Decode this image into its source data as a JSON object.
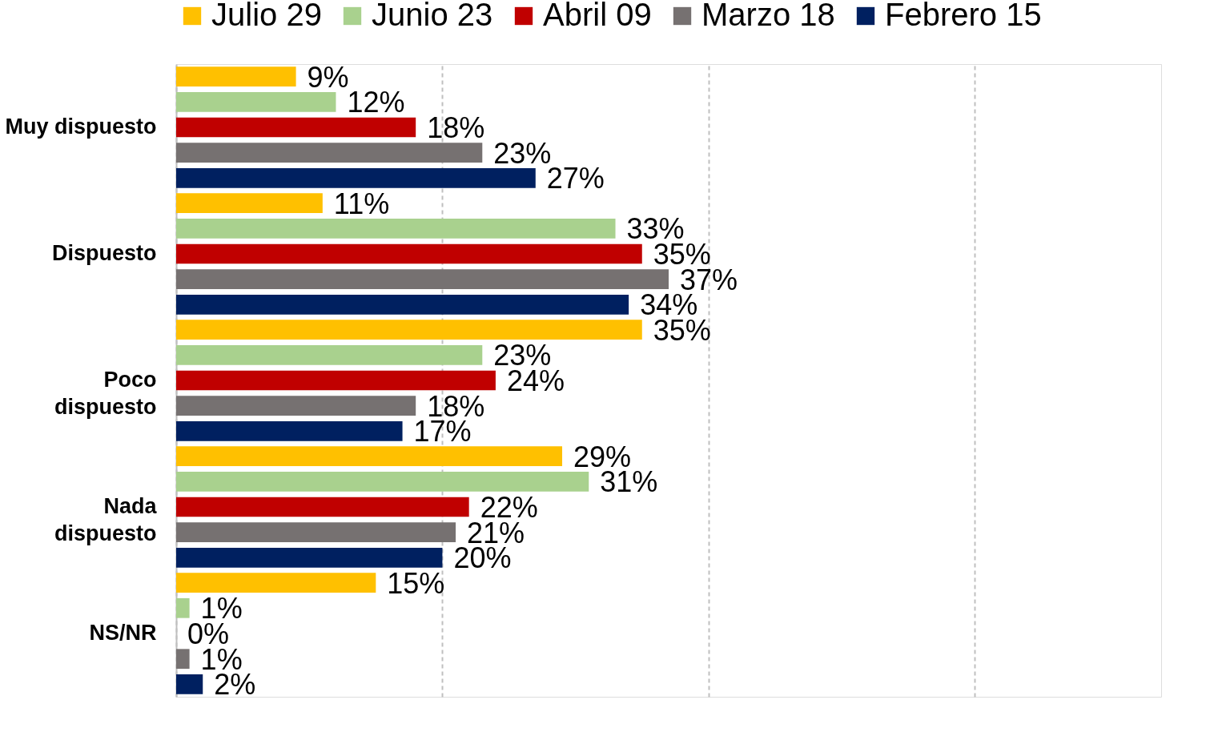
{
  "chart_data": {
    "type": "bar",
    "orientation": "horizontal",
    "categories": [
      "Muy dispuesto",
      "Dispuesto",
      "Poco\ndispuesto",
      "Nada\ndispuesto",
      "NS/NR"
    ],
    "series": [
      {
        "name": "Julio 29",
        "color": "#ffc000",
        "values": [
          9,
          11,
          35,
          29,
          15
        ],
        "value_labels": [
          "9%",
          "11%",
          "35%",
          "29%",
          "15%"
        ]
      },
      {
        "name": "Junio 23",
        "color": "#a9d18e",
        "values": [
          12,
          33,
          23,
          31,
          1
        ],
        "value_labels": [
          "12%",
          "33%",
          "23%",
          "31%",
          "1%"
        ]
      },
      {
        "name": "Abril 09",
        "color": "#c00000",
        "values": [
          18,
          35,
          24,
          22,
          0
        ],
        "value_labels": [
          "18%",
          "35%",
          "24%",
          "22%",
          "0%"
        ]
      },
      {
        "name": "Marzo 18",
        "color": "#767171",
        "values": [
          23,
          37,
          18,
          21,
          1
        ],
        "value_labels": [
          "23%",
          "37%",
          "18%",
          "21%",
          "1%"
        ]
      },
      {
        "name": "Febrero 15",
        "color": "#002060",
        "values": [
          27,
          34,
          17,
          20,
          2
        ],
        "value_labels": [
          "27%",
          "34%",
          "17%",
          "20%",
          "2%"
        ]
      }
    ],
    "xlim": [
      0,
      74
    ],
    "xticks": [
      {
        "value": 0,
        "label": null
      },
      {
        "value": 20,
        "label": null
      },
      {
        "value": 40,
        "label": null
      },
      {
        "value": 60,
        "label": null
      }
    ],
    "grid": "x",
    "legend": "top",
    "tick_labels": "y"
  }
}
